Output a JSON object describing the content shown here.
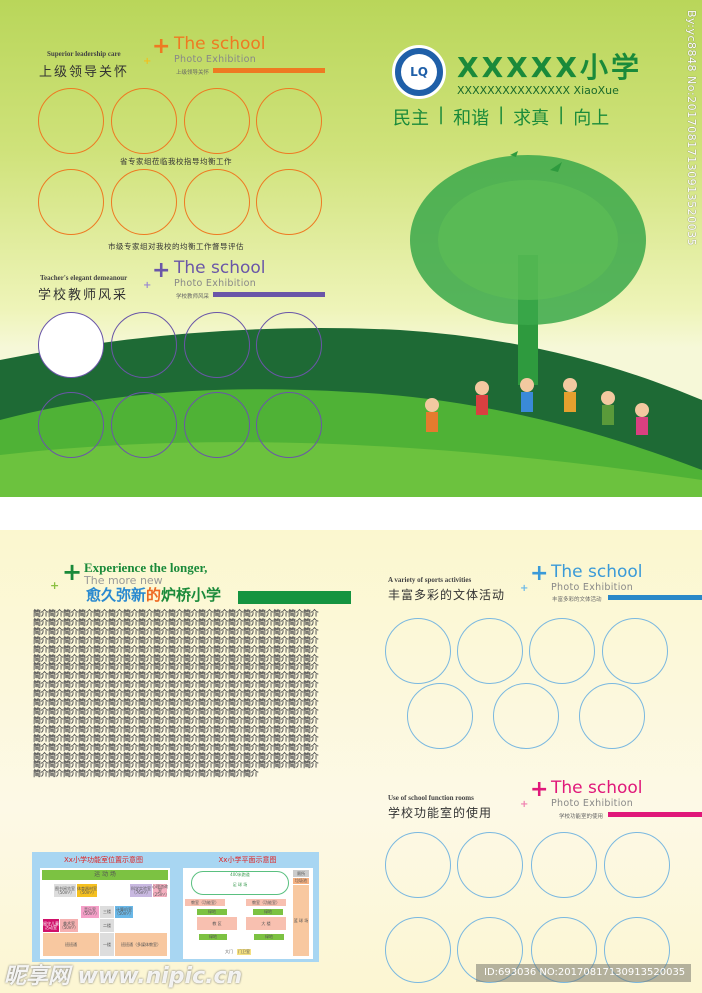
{
  "top_page": {
    "leadership": {
      "sub_en": "Superior leadership care",
      "sub_cn": "上级领导关怀",
      "title": "The school",
      "subtitle": "Photo Exhibition",
      "tag": "上级领导关怀",
      "accent": "#ee7a22",
      "caption1": "省专家组莅临我校指导均衡工作",
      "caption2": "市级专家组对我校的均衡工作督导评估"
    },
    "teachers": {
      "sub_en": "Teacher's elegant demeanour",
      "sub_cn": "学校教师风采",
      "title": "The school",
      "subtitle": "Photo Exhibition",
      "tag": "学校教师风采",
      "accent": "#6a56a8"
    },
    "school_name": "XXXXX小学",
    "school_name_en": "XXXXXXXXXXXXXXX XiaoXue",
    "motto": [
      "民主",
      "和谐",
      "求真",
      "向上"
    ],
    "logo_text": "LQ",
    "brand_color": "#1a8a3a"
  },
  "bottom_page": {
    "intro": {
      "line1": "Experience the longer,",
      "line2": "The more new",
      "cn_a": "愈久弥新",
      "cn_b": "的",
      "cn_c": "炉桥小学",
      "body_unit": "简介",
      "full_lines": 25,
      "last_line_units": 7
    },
    "sports": {
      "sub_en": "A variety of sports activities",
      "sub_cn": "丰富多彩的文体活动",
      "title": "The school",
      "subtitle": "Photo Exhibition",
      "tag": "丰富多彩的文体活动",
      "accent": "#3a9ad8"
    },
    "rooms": {
      "sub_en": "Use of school function rooms",
      "sub_cn": "学校功能室的使用",
      "title": "The school",
      "subtitle": "Photo Exhibition",
      "tag": "学校功能室的使用",
      "accent": "#e0187a"
    },
    "map1": {
      "title": "Xx小学功能室位置示意图",
      "field": "运 动 场",
      "rooms": [
        "图书阅览室（50m²）",
        "体育器材室（50m²）",
        "科学实验室（76m²）",
        "心理咨询室（25m²）",
        "音乐室（50m²）",
        "三楼",
        "计算机室（50m²）",
        "留守儿童活动室",
        "美术室（50m²）",
        "二楼",
        "一楼",
        "班班通",
        "班班通（多媒体教室）"
      ]
    },
    "map2": {
      "title": "Xx小学平面示意图",
      "track": "400米跑道",
      "field": "足 球 场",
      "rooms": [
        "教室（功能室）",
        "教室（功能室）",
        "绿地",
        "绿地",
        "教 区",
        "大 楼",
        "绿地",
        "绿地",
        "厕所",
        "垃圾池",
        "篮 球 场",
        "大门",
        "门卫室"
      ]
    }
  },
  "watermarks": {
    "site": "昵享网 www.nipic.cn",
    "id": "ID:693036 NO:20170817130913520035",
    "side": "By:yc8848 No:20170817130913520035"
  }
}
